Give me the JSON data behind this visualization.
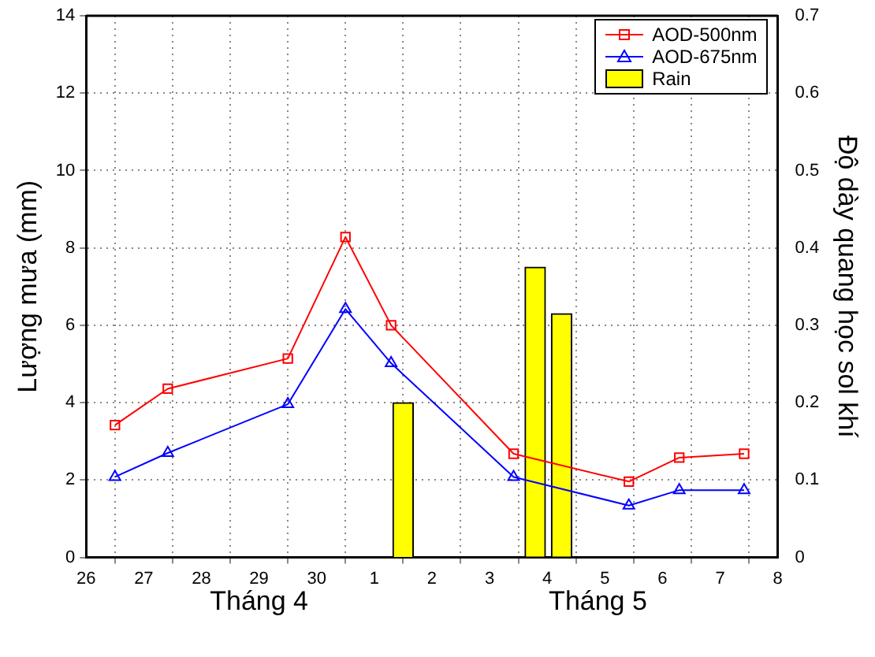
{
  "chart_data": {
    "type": "line",
    "ylabel": "Lượng mưa (mm)",
    "y2label": "Độ dày quang học sol khí",
    "annotations": [
      "Tháng 4",
      "Tháng 5"
    ],
    "xlim": [
      "--04-26",
      "--05-08"
    ],
    "xticks": [
      {
        "value": "--04-26",
        "label": "26"
      },
      {
        "value": "--04-27",
        "label": "27"
      },
      {
        "value": "--04-28",
        "label": "28"
      },
      {
        "value": "--04-29",
        "label": "29"
      },
      {
        "value": "--04-30",
        "label": "30"
      },
      {
        "value": "--05-01",
        "label": "1"
      },
      {
        "value": "--05-02",
        "label": "2"
      },
      {
        "value": "--05-03",
        "label": "3"
      },
      {
        "value": "--05-04",
        "label": "4"
      },
      {
        "value": "--05-05",
        "label": "5"
      },
      {
        "value": "--05-06",
        "label": "6"
      },
      {
        "value": "--05-07",
        "label": "7"
      },
      {
        "value": "--05-08",
        "label": "8"
      }
    ],
    "ylim": [
      0,
      14
    ],
    "yticks": [
      0,
      2,
      4,
      6,
      8,
      10,
      12,
      14
    ],
    "y2lim": [
      0,
      0.7
    ],
    "y2ticks": [
      0,
      0.1,
      0.2,
      0.3,
      0.4,
      0.5,
      0.6,
      0.7
    ],
    "grid": true,
    "legend": "top right",
    "line_style": "solid",
    "series": [
      {
        "name": "AOD-500nm",
        "axis": "y2",
        "marker": "square",
        "color": "#ff0000",
        "x": [
          "--04-26T12:00",
          "--04-27T10:00",
          "--04-29T12:00",
          "--04-30T12:00",
          "--05-01T07:00",
          "--05-03T10:00",
          "--05-05T10:00",
          "--05-06T07:00",
          "--05-07T10:00"
        ],
        "values": [
          0.171,
          0.218,
          0.257,
          0.414,
          0.3,
          0.134,
          0.098,
          0.129,
          0.134
        ]
      },
      {
        "name": "AOD-675nm",
        "axis": "y2",
        "marker": "triangle",
        "color": "#0000ff",
        "x": [
          "--04-26T12:00",
          "--04-27T10:00",
          "--04-29T12:00",
          "--04-30T12:00",
          "--05-01T07:00",
          "--05-03T10:00",
          "--05-05T10:00",
          "--05-06T07:00",
          "--05-07T10:00"
        ],
        "values": [
          0.104,
          0.135,
          0.198,
          0.321,
          0.251,
          0.104,
          0.067,
          0.087,
          0.087
        ]
      },
      {
        "name": "Rain",
        "type": "bar",
        "axis": "y",
        "color": "#ffff00",
        "x": [
          "--05-01T12:00",
          "--05-03T19:00",
          "--05-04T06:00"
        ],
        "values": [
          4,
          7.5,
          6.3
        ]
      }
    ]
  }
}
